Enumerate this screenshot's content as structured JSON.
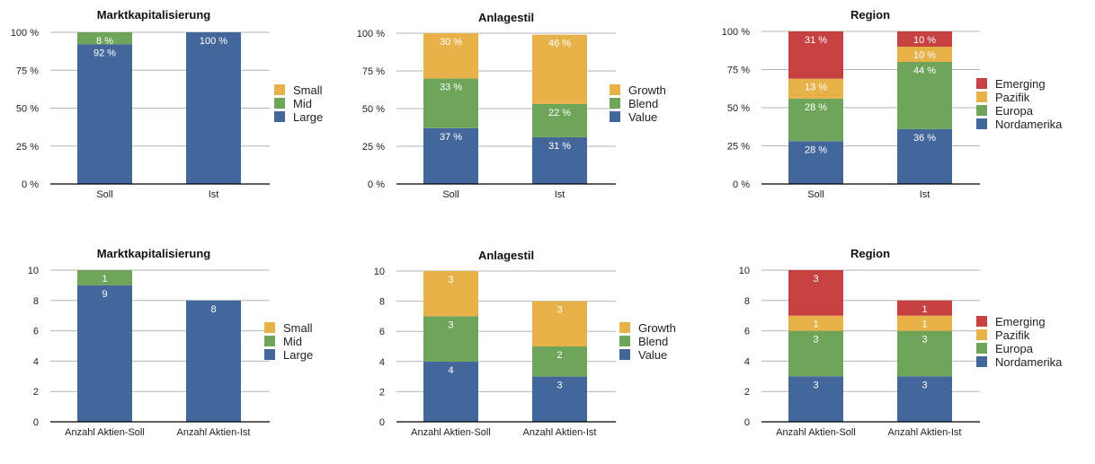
{
  "colors": {
    "Large": "#44679b",
    "Mid": "#6ea55a",
    "Small": "#e8b24b",
    "Value": "#44679b",
    "Blend": "#6ea55a",
    "Growth": "#e8b24b",
    "Nordamerika": "#44679b",
    "Europa": "#6ea55a",
    "Pazifik": "#e8b24b",
    "Emerging": "#c64142"
  },
  "chart_data": [
    {
      "type": "bar",
      "stacked": true,
      "title": "Marktkapitalisierung",
      "categories": [
        "Soll",
        "Ist"
      ],
      "series": [
        {
          "name": "Large",
          "values": [
            92,
            100
          ]
        },
        {
          "name": "Mid",
          "values": [
            8,
            0
          ]
        },
        {
          "name": "Small",
          "values": [
            0,
            0
          ]
        }
      ],
      "ytick_labels": [
        "0 %",
        "25 %",
        "50 %",
        "75 %",
        "100 %"
      ],
      "yticks": [
        0,
        25,
        50,
        75,
        100
      ],
      "ylim": [
        0,
        100
      ],
      "value_suffix": " %",
      "legend": [
        "Small",
        "Mid",
        "Large"
      ],
      "legend_position": "right",
      "grid": true
    },
    {
      "type": "bar",
      "stacked": true,
      "title": "Anlagestil",
      "categories": [
        "Soll",
        "Ist"
      ],
      "series": [
        {
          "name": "Value",
          "values": [
            37,
            31
          ]
        },
        {
          "name": "Blend",
          "values": [
            33,
            22
          ]
        },
        {
          "name": "Growth",
          "values": [
            30,
            46
          ]
        }
      ],
      "ytick_labels": [
        "0 %",
        "25 %",
        "50 %",
        "75 %",
        "100 %"
      ],
      "yticks": [
        0,
        25,
        50,
        75,
        100
      ],
      "ylim": [
        0,
        100
      ],
      "value_suffix": " %",
      "legend": [
        "Growth",
        "Blend",
        "Value"
      ],
      "legend_position": "right",
      "grid": true
    },
    {
      "type": "bar",
      "stacked": true,
      "title": "Region",
      "categories": [
        "Soll",
        "Ist"
      ],
      "series": [
        {
          "name": "Nordamerika",
          "values": [
            28,
            36
          ]
        },
        {
          "name": "Europa",
          "values": [
            28,
            44
          ]
        },
        {
          "name": "Pazifik",
          "values": [
            13,
            10
          ]
        },
        {
          "name": "Emerging",
          "values": [
            31,
            10
          ]
        }
      ],
      "ytick_labels": [
        "0 %",
        "25 %",
        "50 %",
        "75 %",
        "100 %"
      ],
      "yticks": [
        0,
        25,
        50,
        75,
        100
      ],
      "ylim": [
        0,
        100
      ],
      "value_suffix": " %",
      "legend": [
        "Emerging",
        "Pazifik",
        "Europa",
        "Nordamerika"
      ],
      "legend_position": "right",
      "grid": true
    },
    {
      "type": "bar",
      "stacked": true,
      "title": "Marktkapitalisierung",
      "categories": [
        "Anzahl Aktien-Soll",
        "Anzahl Aktien-Ist"
      ],
      "series": [
        {
          "name": "Large",
          "values": [
            9,
            8
          ]
        },
        {
          "name": "Mid",
          "values": [
            1,
            0
          ]
        },
        {
          "name": "Small",
          "values": [
            0,
            0
          ]
        }
      ],
      "ytick_labels": [
        "0",
        "2",
        "4",
        "6",
        "8",
        "10"
      ],
      "yticks": [
        0,
        2,
        4,
        6,
        8,
        10
      ],
      "ylim": [
        0,
        10
      ],
      "value_suffix": "",
      "legend": [
        "Small",
        "Mid",
        "Large"
      ],
      "legend_position": "right",
      "grid": true
    },
    {
      "type": "bar",
      "stacked": true,
      "title": "Anlagestil",
      "categories": [
        "Anzahl Aktien-Soll",
        "Anzahl Aktien-Ist"
      ],
      "series": [
        {
          "name": "Value",
          "values": [
            4,
            3
          ]
        },
        {
          "name": "Blend",
          "values": [
            3,
            2
          ]
        },
        {
          "name": "Growth",
          "values": [
            3,
            3
          ]
        }
      ],
      "ytick_labels": [
        "0",
        "2",
        "4",
        "6",
        "8",
        "10"
      ],
      "yticks": [
        0,
        2,
        4,
        6,
        8,
        10
      ],
      "ylim": [
        0,
        10
      ],
      "value_suffix": "",
      "legend": [
        "Growth",
        "Blend",
        "Value"
      ],
      "legend_position": "right",
      "grid": true
    },
    {
      "type": "bar",
      "stacked": true,
      "title": "Region",
      "categories": [
        "Anzahl Aktien-Soll",
        "Anzahl Aktien-Ist"
      ],
      "series": [
        {
          "name": "Nordamerika",
          "values": [
            3,
            3
          ]
        },
        {
          "name": "Europa",
          "values": [
            3,
            3
          ]
        },
        {
          "name": "Pazifik",
          "values": [
            1,
            1
          ]
        },
        {
          "name": "Emerging",
          "values": [
            3,
            1
          ]
        }
      ],
      "ytick_labels": [
        "0",
        "2",
        "4",
        "6",
        "8",
        "10"
      ],
      "yticks": [
        0,
        2,
        4,
        6,
        8,
        10
      ],
      "ylim": [
        0,
        10
      ],
      "value_suffix": "",
      "legend": [
        "Emerging",
        "Pazifik",
        "Europa",
        "Nordamerika"
      ],
      "legend_position": "right",
      "grid": true
    }
  ]
}
